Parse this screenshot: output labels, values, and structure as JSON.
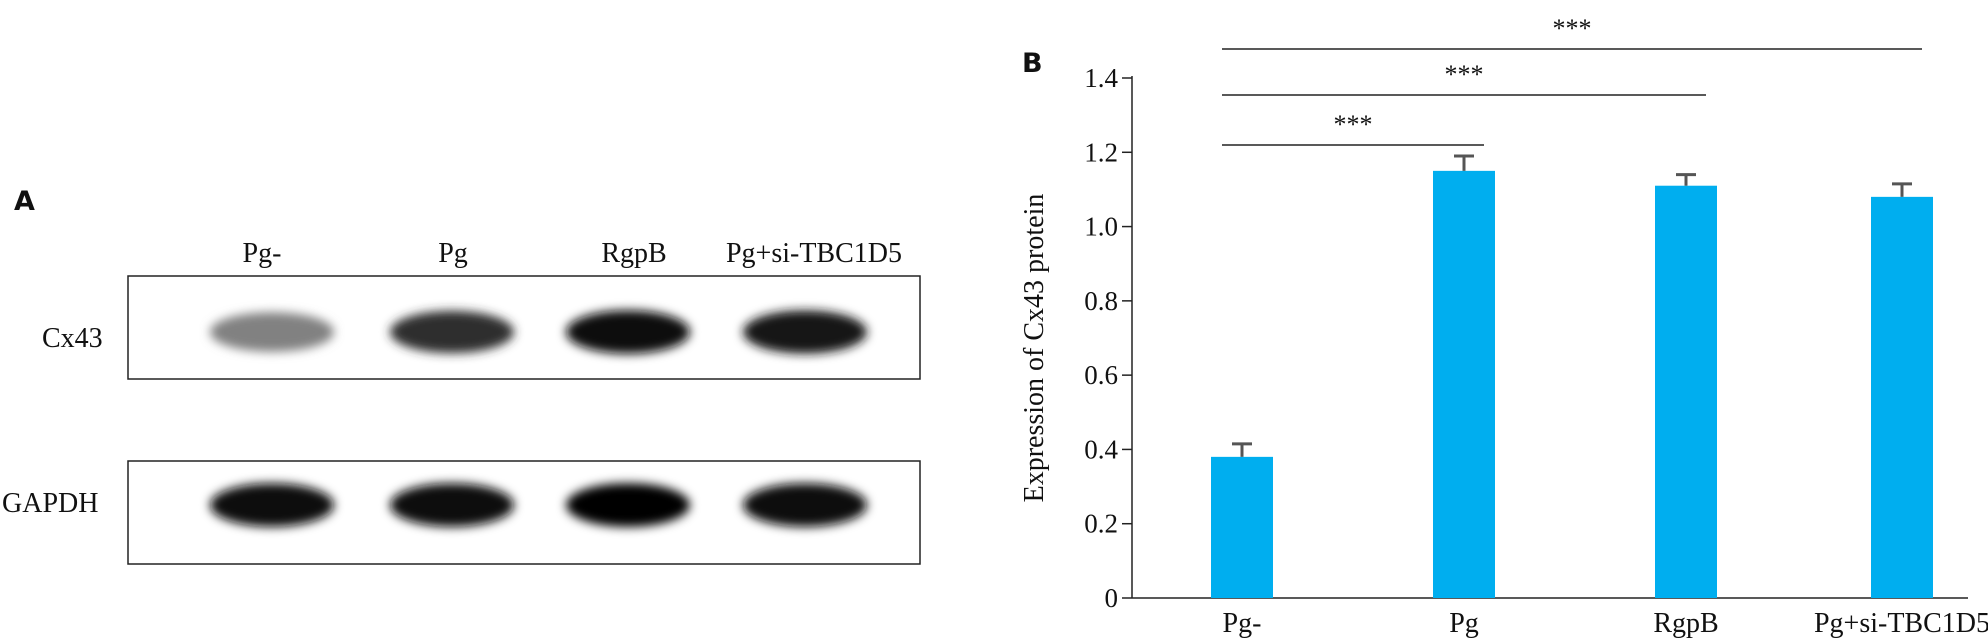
{
  "panels": {
    "a": {
      "letter": "A"
    },
    "b": {
      "letter": "B"
    }
  },
  "blot": {
    "lanes": [
      "Pg-",
      "Pg",
      "RgpB",
      "Pg+si-TBC1D5"
    ],
    "rows": [
      {
        "label": "Cx43",
        "intensity": [
          0.45,
          0.8,
          0.95,
          0.92
        ]
      },
      {
        "label": "GAPDH",
        "intensity": [
          0.95,
          0.95,
          0.98,
          0.95
        ]
      }
    ]
  },
  "chart_data": {
    "type": "bar",
    "categories": [
      "Pg-",
      "Pg",
      "RgpB",
      "Pg+si-TBC1D5"
    ],
    "values": [
      0.38,
      1.15,
      1.11,
      1.08
    ],
    "errors": [
      0.035,
      0.04,
      0.03,
      0.035
    ],
    "ylabel": "Expression of Cx43 protein",
    "ylim": [
      0,
      1.4
    ],
    "yticks": [
      0,
      0.2,
      0.4,
      0.6,
      0.8,
      1.0,
      1.2,
      1.4
    ],
    "ytick_labels": [
      "0",
      "0.2",
      "0.4",
      "0.6",
      "0.8",
      "1.0",
      "1.2",
      "1.4"
    ],
    "bar_color": "#00AEEF",
    "error_color": "#555555",
    "grid": false,
    "significance": [
      {
        "from": 0,
        "to": 1,
        "label": "***"
      },
      {
        "from": 0,
        "to": 2,
        "label": "***"
      },
      {
        "from": 0,
        "to": 3,
        "label": "***"
      }
    ]
  }
}
